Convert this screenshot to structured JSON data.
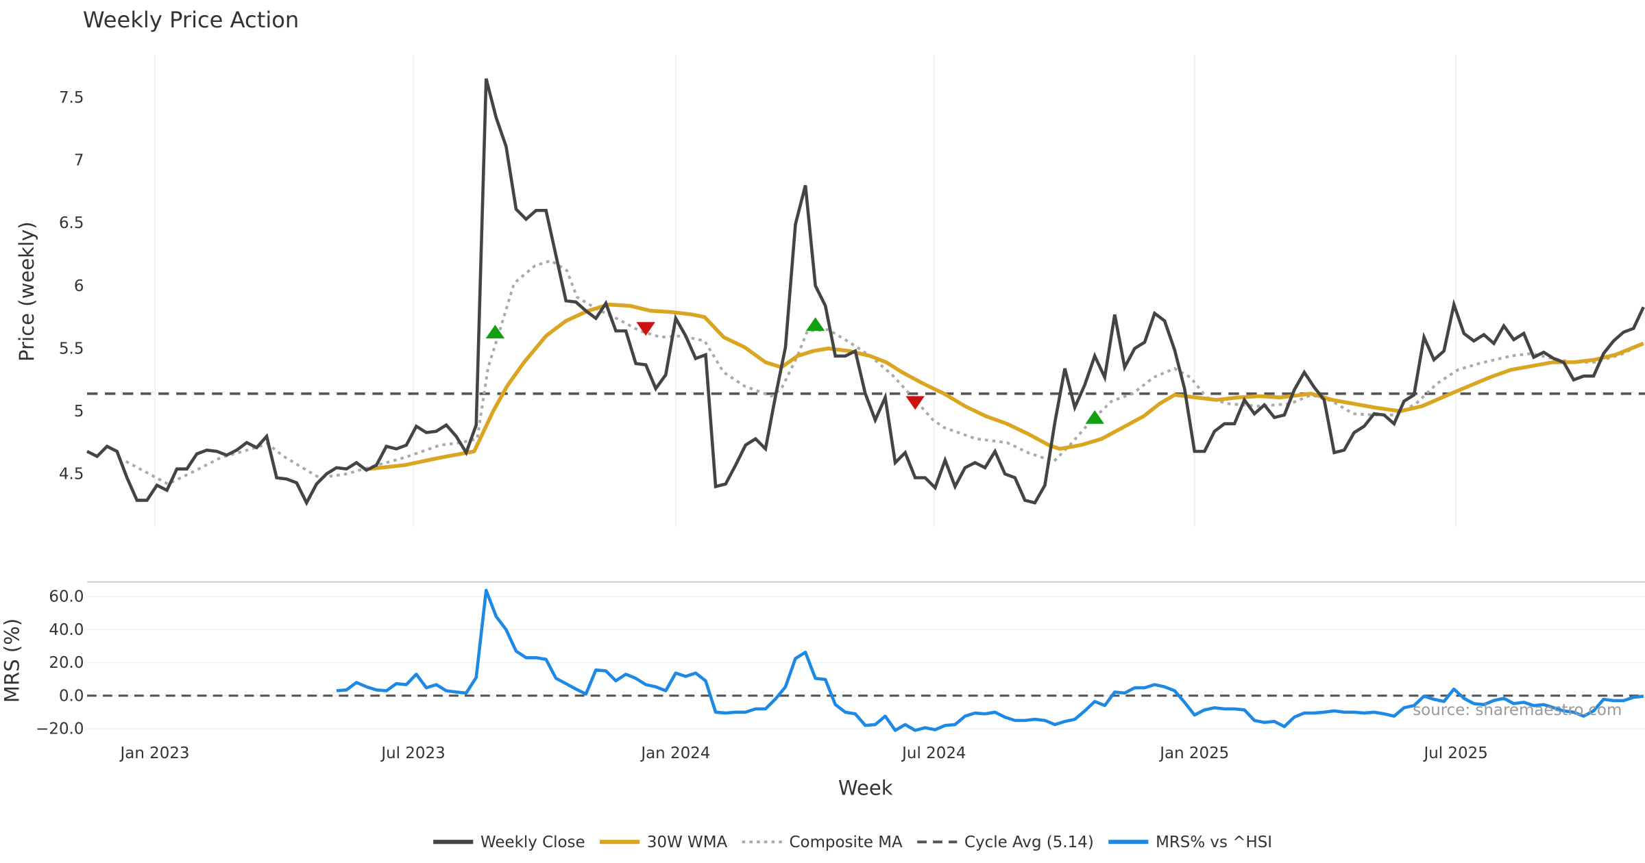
{
  "chart_data": [
    {
      "type": "line",
      "title": "Weekly Price Action",
      "ylabel": "Price (weekly)",
      "xlabel": "",
      "ylim": [
        4.08,
        7.82
      ],
      "yticks": [
        "4.5",
        "5",
        "5.5",
        "6",
        "6.5",
        "7",
        "7.5"
      ],
      "ytick_values": [
        4.5,
        5,
        5.5,
        6,
        6.5,
        7,
        7.5
      ],
      "x_start_week": "2022-11-14",
      "x_interval_days": 7,
      "xticks": [
        {
          "label": "Jan 2023",
          "week": 6.8
        },
        {
          "label": "Jul 2023",
          "week": 32.7
        },
        {
          "label": "Jan 2024",
          "week": 59.0
        },
        {
          "label": "Jul 2024",
          "week": 84.9
        },
        {
          "label": "Jan 2025",
          "week": 111.0
        },
        {
          "label": "Jul 2025",
          "week": 137.2
        }
      ],
      "grid": "vertical",
      "cycle_avg": 5.14,
      "series": [
        {
          "name": "Weekly Close",
          "color": "#444444",
          "values": [
            4.68,
            4.64,
            4.72,
            4.68,
            4.47,
            4.29,
            4.29,
            4.41,
            4.37,
            4.54,
            4.54,
            4.66,
            4.69,
            4.68,
            4.65,
            4.69,
            4.75,
            4.71,
            4.8,
            4.47,
            4.46,
            4.43,
            4.27,
            4.42,
            4.5,
            4.55,
            4.54,
            4.59,
            4.53,
            4.57,
            4.72,
            4.7,
            4.73,
            4.88,
            4.83,
            4.84,
            4.89,
            4.8,
            4.67,
            4.89,
            7.65,
            7.34,
            7.11,
            6.61,
            6.53,
            6.6,
            6.6,
            6.24,
            5.88,
            5.87,
            5.8,
            5.74,
            5.86,
            5.64,
            5.64,
            5.38,
            5.37,
            5.18,
            5.29,
            5.74,
            5.6,
            5.42,
            5.45,
            4.4,
            4.42,
            4.57,
            4.73,
            4.78,
            4.7,
            5.12,
            5.51,
            6.49,
            6.8,
            6.0,
            5.84,
            5.44,
            5.44,
            5.48,
            5.14,
            4.93,
            5.11,
            4.59,
            4.67,
            4.47,
            4.47,
            4.39,
            4.61,
            4.4,
            4.55,
            4.59,
            4.55,
            4.68,
            4.5,
            4.47,
            4.29,
            4.27,
            4.41,
            4.91,
            5.34,
            5.03,
            5.21,
            5.44,
            5.27,
            5.77,
            5.35,
            5.5,
            5.55,
            5.78,
            5.72,
            5.49,
            5.18,
            4.68,
            4.68,
            4.84,
            4.9,
            4.9,
            5.09,
            4.98,
            5.05,
            4.95,
            4.97,
            5.17,
            5.31,
            5.19,
            5.09,
            4.67,
            4.69,
            4.83,
            4.88,
            4.98,
            4.97,
            4.9,
            5.08,
            5.13,
            5.59,
            5.41,
            5.48,
            5.85,
            5.62,
            5.56,
            5.61,
            5.54,
            5.68,
            5.57,
            5.62,
            5.43,
            5.47,
            5.42,
            5.39,
            5.25,
            5.28,
            5.28,
            5.46,
            5.56,
            5.63,
            5.66,
            5.83
          ]
        },
        {
          "name": "30W WMA",
          "color": "#DAA520",
          "points": [
            [
              28.3,
              4.54
            ],
            [
              31.8,
              4.57
            ],
            [
              35.4,
              4.63
            ],
            [
              38.8,
              4.68
            ],
            [
              40.7,
              5.0
            ],
            [
              42.1,
              5.2
            ],
            [
              43.8,
              5.39
            ],
            [
              46,
              5.6
            ],
            [
              48,
              5.72
            ],
            [
              50.2,
              5.8
            ],
            [
              52.3,
              5.85
            ],
            [
              54.4,
              5.84
            ],
            [
              56.5,
              5.8
            ],
            [
              58.6,
              5.79
            ],
            [
              60.7,
              5.77
            ],
            [
              61.9,
              5.75
            ],
            [
              63.8,
              5.59
            ],
            [
              65.9,
              5.51
            ],
            [
              68,
              5.39
            ],
            [
              69.6,
              5.35
            ],
            [
              71.2,
              5.44
            ],
            [
              72.8,
              5.48
            ],
            [
              74.3,
              5.5
            ],
            [
              76.4,
              5.48
            ],
            [
              78.5,
              5.44
            ],
            [
              80.1,
              5.39
            ],
            [
              81.7,
              5.31
            ],
            [
              83.8,
              5.22
            ],
            [
              85.9,
              5.14
            ],
            [
              88,
              5.04
            ],
            [
              90.1,
              4.96
            ],
            [
              92.2,
              4.9
            ],
            [
              94.3,
              4.82
            ],
            [
              96.4,
              4.73
            ],
            [
              97.5,
              4.7
            ],
            [
              99.6,
              4.73
            ],
            [
              101.7,
              4.78
            ],
            [
              103.8,
              4.87
            ],
            [
              105.9,
              4.96
            ],
            [
              107.5,
              5.06
            ],
            [
              109,
              5.13
            ],
            [
              111.1,
              5.11
            ],
            [
              113.2,
              5.09
            ],
            [
              115.4,
              5.11
            ],
            [
              117.5,
              5.12
            ],
            [
              119.6,
              5.11
            ],
            [
              122.7,
              5.14
            ],
            [
              124.8,
              5.09
            ],
            [
              126.9,
              5.06
            ],
            [
              129,
              5.03
            ],
            [
              131.6,
              5.0
            ],
            [
              133.8,
              5.04
            ],
            [
              136.4,
              5.13
            ],
            [
              138.5,
              5.2
            ],
            [
              140.6,
              5.27
            ],
            [
              142.7,
              5.33
            ],
            [
              144.8,
              5.36
            ],
            [
              146.9,
              5.39
            ],
            [
              149,
              5.39
            ],
            [
              151.1,
              5.41
            ],
            [
              153.2,
              5.45
            ],
            [
              156,
              5.54
            ]
          ]
        },
        {
          "name": "Composite MA",
          "color": "#AAAAAA",
          "points": [
            [
              3.9,
              4.6
            ],
            [
              8.1,
              4.42
            ],
            [
              10.7,
              4.52
            ],
            [
              13.4,
              4.63
            ],
            [
              16.5,
              4.7
            ],
            [
              18.1,
              4.74
            ],
            [
              19.7,
              4.64
            ],
            [
              21.8,
              4.54
            ],
            [
              23.3,
              4.47
            ],
            [
              26,
              4.5
            ],
            [
              28.6,
              4.56
            ],
            [
              31.8,
              4.63
            ],
            [
              35.4,
              4.73
            ],
            [
              37.5,
              4.75
            ],
            [
              39.1,
              4.78
            ],
            [
              40.2,
              5.35
            ],
            [
              41.2,
              5.6
            ],
            [
              42.8,
              6.02
            ],
            [
              44.9,
              6.16
            ],
            [
              46.5,
              6.2
            ],
            [
              48.1,
              6.12
            ],
            [
              49.1,
              5.91
            ],
            [
              51.2,
              5.81
            ],
            [
              53.3,
              5.73
            ],
            [
              55.4,
              5.64
            ],
            [
              57.5,
              5.59
            ],
            [
              59.6,
              5.6
            ],
            [
              61.9,
              5.56
            ],
            [
              63.8,
              5.31
            ],
            [
              65.9,
              5.2
            ],
            [
              68.6,
              5.12
            ],
            [
              69.6,
              5.18
            ],
            [
              71.2,
              5.44
            ],
            [
              72.2,
              5.64
            ],
            [
              74.3,
              5.65
            ],
            [
              76.4,
              5.55
            ],
            [
              78.5,
              5.44
            ],
            [
              80.7,
              5.29
            ],
            [
              84.8,
              4.93
            ],
            [
              85.9,
              4.87
            ],
            [
              89.1,
              4.78
            ],
            [
              92.2,
              4.75
            ],
            [
              94.3,
              4.67
            ],
            [
              96.9,
              4.6
            ],
            [
              98.5,
              4.73
            ],
            [
              100.6,
              4.92
            ],
            [
              102.7,
              5.08
            ],
            [
              104.8,
              5.14
            ],
            [
              106.9,
              5.27
            ],
            [
              109,
              5.34
            ],
            [
              110.6,
              5.27
            ],
            [
              112.2,
              5.11
            ],
            [
              114.3,
              5.06
            ],
            [
              117.5,
              5.04
            ],
            [
              120.6,
              5.06
            ],
            [
              122.7,
              5.13
            ],
            [
              124.8,
              5.08
            ],
            [
              126.9,
              4.98
            ],
            [
              129,
              4.97
            ],
            [
              131.1,
              4.97
            ],
            [
              133.2,
              5.06
            ],
            [
              135.3,
              5.22
            ],
            [
              137.4,
              5.33
            ],
            [
              139.5,
              5.38
            ],
            [
              142.7,
              5.44
            ],
            [
              144.8,
              5.46
            ],
            [
              146.9,
              5.42
            ],
            [
              149,
              5.39
            ],
            [
              151.1,
              5.39
            ],
            [
              153.7,
              5.45
            ],
            [
              156,
              5.54
            ]
          ]
        }
      ],
      "signals": [
        {
          "type": "buy",
          "week": 40.9,
          "value": 5.63,
          "color": "#11A011"
        },
        {
          "type": "sell",
          "week": 56.0,
          "value": 5.66,
          "color": "#CC1111"
        },
        {
          "type": "buy",
          "week": 73.0,
          "value": 5.69,
          "color": "#11A011"
        },
        {
          "type": "sell",
          "week": 83.0,
          "value": 5.07,
          "color": "#CC1111"
        },
        {
          "type": "buy",
          "week": 101.0,
          "value": 4.95,
          "color": "#11A011"
        }
      ]
    },
    {
      "type": "line",
      "ylabel": "MRS (%)",
      "xlabel": "Week",
      "ylim": [
        -25,
        70
      ],
      "yticks": [
        "−20.0",
        "0.0",
        "20.0",
        "40.0",
        "60.0"
      ],
      "ytick_values": [
        -20,
        0,
        20,
        40,
        60
      ],
      "zero_line": 0,
      "series": [
        {
          "name": "MRS% vs ^HSI",
          "color": "#1E88E5",
          "start_week": 25,
          "values": [
            3,
            3.5,
            8,
            5.4,
            3.5,
            3,
            7.3,
            6.7,
            13,
            4.8,
            6.7,
            3,
            2.2,
            1.6,
            11,
            63.8,
            48,
            40,
            27,
            23,
            23,
            22,
            10.5,
            7.3,
            4,
            1,
            15.6,
            15,
            9,
            13,
            10.5,
            6.7,
            5.4,
            3,
            13.7,
            11.7,
            13.7,
            9,
            -10,
            -10.5,
            -10,
            -10,
            -8,
            -8,
            -2,
            5.4,
            22.5,
            26.3,
            10.5,
            9.8,
            -5.4,
            -10,
            -11,
            -18,
            -17.5,
            -12.4,
            -21,
            -17.5,
            -21,
            -19.4,
            -20.6,
            -18,
            -17.5,
            -12.4,
            -10.5,
            -11,
            -10,
            -13,
            -15,
            -15,
            -14.3,
            -15,
            -17.5,
            -15.6,
            -14.3,
            -9.2,
            -3.5,
            -6,
            2.2,
            1.6,
            4.8,
            4.8,
            6.7,
            5.4,
            3,
            -4,
            -11.7,
            -8.6,
            -7.3,
            -8,
            -8,
            -8.6,
            -15,
            -16.2,
            -15.6,
            -18.7,
            -13,
            -10.5,
            -10.5,
            -10,
            -9.2,
            -10,
            -10,
            -10.5,
            -10,
            -11,
            -12.4,
            -7.3,
            -6,
            -0.3,
            -2.2,
            -3.5,
            4,
            -1.6,
            -4.8,
            -5.4,
            -2.9,
            -1.6,
            -4.8,
            -4,
            -6,
            -5.4,
            -7.3,
            -9.2,
            -10,
            -12.4,
            -9.2,
            -2.2,
            -3,
            -3,
            -1,
            -0.3
          ]
        }
      ],
      "annotation": "source: sharemaestro.com"
    }
  ],
  "legend": {
    "placement": "bottom-center",
    "items": [
      {
        "label": "Weekly Close",
        "color": "#444444",
        "style": "solid"
      },
      {
        "label": "30W WMA",
        "color": "#DAA520",
        "style": "solid"
      },
      {
        "label": "Composite MA",
        "color": "#AAAAAA",
        "style": "dotted"
      },
      {
        "label": "Cycle Avg (5.14)",
        "color": "#555555",
        "style": "dashed"
      },
      {
        "label": "MRS% vs ^HSI",
        "color": "#1E88E5",
        "style": "solid"
      }
    ]
  }
}
